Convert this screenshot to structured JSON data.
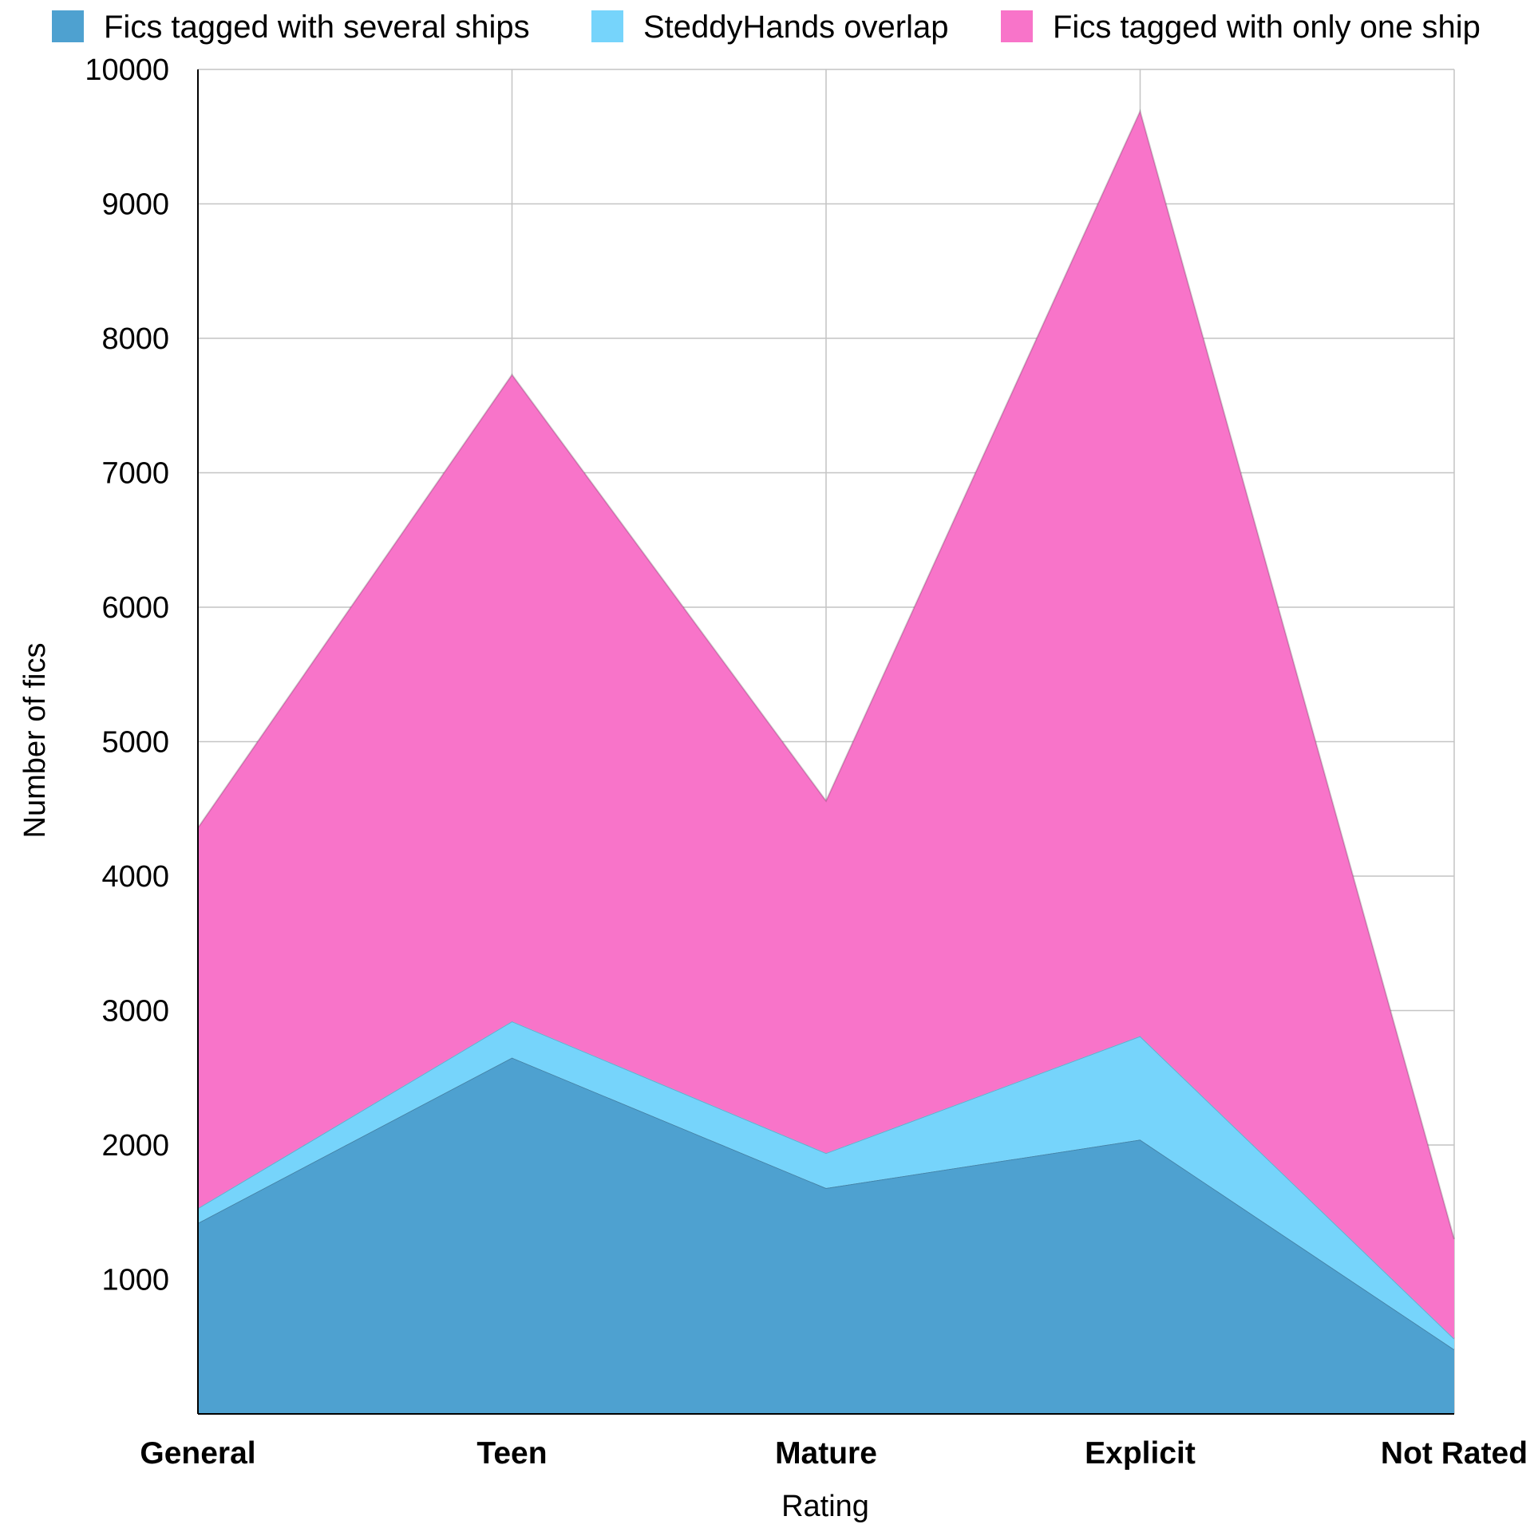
{
  "chart_data": {
    "type": "area",
    "stacked": true,
    "xlabel": "Rating",
    "ylabel": "Number of fics",
    "categories": [
      "General",
      "Teen",
      "Mature",
      "Explicit",
      "Not Rated"
    ],
    "ylim": [
      0,
      10000
    ],
    "yticks": [
      1000,
      2000,
      3000,
      4000,
      5000,
      6000,
      7000,
      8000,
      9000,
      10000
    ],
    "grid": true,
    "legend_position": "top",
    "series": [
      {
        "name": "Fics tagged with several ships",
        "color": "#4ea1d0",
        "values": [
          1420,
          2650,
          1680,
          2040,
          480
        ]
      },
      {
        "name": "SteddyHands overlap",
        "color": "#76d4fb",
        "values": [
          110,
          270,
          260,
          770,
          80
        ]
      },
      {
        "name": "Fics tagged with only one ship",
        "color": "#f874c9",
        "values": [
          2830,
          4810,
          2620,
          6880,
          740
        ]
      }
    ]
  }
}
